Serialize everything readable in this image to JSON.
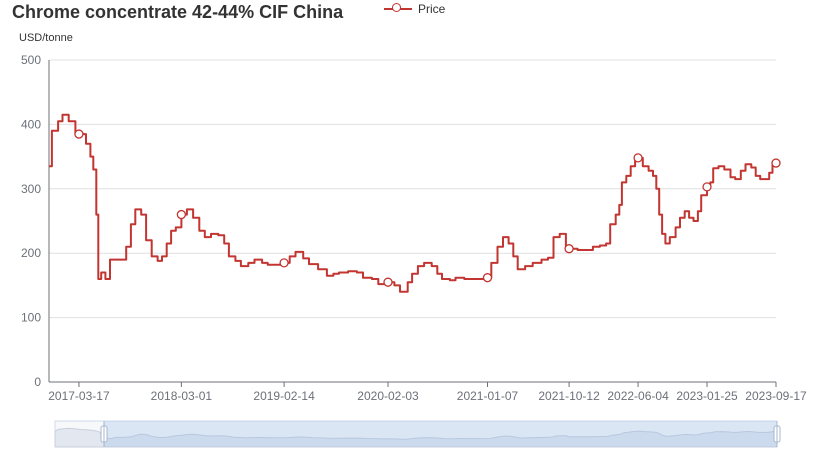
{
  "chart_data": {
    "type": "line",
    "title": "Chrome concentrate 42-44% CIF China",
    "ylabel": "USD/tonne",
    "xlabel": "",
    "ylim": [
      0,
      500
    ],
    "yticks": [
      0,
      100,
      200,
      300,
      400,
      500
    ],
    "x_tick_labels": [
      "2017-03-17",
      "2018-03-01",
      "2019-02-14",
      "2020-02-03",
      "2021-01-07",
      "2021-10-12",
      "2022-06-04",
      "2023-01-25",
      "2023-09-17"
    ],
    "grid": true,
    "legend": "top",
    "series": [
      {
        "name": "Price",
        "color": "#c23531",
        "points": [
          [
            "2016-12-05",
            335
          ],
          [
            "2016-12-15",
            390
          ],
          [
            "2017-01-05",
            405
          ],
          [
            "2017-01-20",
            415
          ],
          [
            "2017-02-10",
            405
          ],
          [
            "2017-03-05",
            385
          ],
          [
            "2017-03-17",
            385
          ],
          [
            "2017-04-10",
            370
          ],
          [
            "2017-04-25",
            350
          ],
          [
            "2017-05-05",
            330
          ],
          [
            "2017-05-15",
            260
          ],
          [
            "2017-05-22",
            160
          ],
          [
            "2017-06-01",
            170
          ],
          [
            "2017-06-15",
            160
          ],
          [
            "2017-07-01",
            190
          ],
          [
            "2017-08-01",
            190
          ],
          [
            "2017-08-25",
            210
          ],
          [
            "2017-09-10",
            245
          ],
          [
            "2017-09-25",
            268
          ],
          [
            "2017-10-15",
            260
          ],
          [
            "2017-11-01",
            220
          ],
          [
            "2017-11-20",
            195
          ],
          [
            "2017-12-10",
            188
          ],
          [
            "2017-12-25",
            195
          ],
          [
            "2018-01-10",
            215
          ],
          [
            "2018-01-25",
            235
          ],
          [
            "2018-02-10",
            240
          ],
          [
            "2018-03-01",
            260
          ],
          [
            "2018-03-20",
            268
          ],
          [
            "2018-04-10",
            255
          ],
          [
            "2018-05-01",
            235
          ],
          [
            "2018-05-20",
            225
          ],
          [
            "2018-06-10",
            230
          ],
          [
            "2018-07-05",
            228
          ],
          [
            "2018-07-25",
            215
          ],
          [
            "2018-08-10",
            195
          ],
          [
            "2018-09-01",
            188
          ],
          [
            "2018-09-20",
            180
          ],
          [
            "2018-10-15",
            185
          ],
          [
            "2018-11-05",
            190
          ],
          [
            "2018-12-01",
            185
          ],
          [
            "2018-12-20",
            182
          ],
          [
            "2019-02-14",
            185
          ],
          [
            "2019-03-05",
            195
          ],
          [
            "2019-03-25",
            202
          ],
          [
            "2019-04-20",
            192
          ],
          [
            "2019-05-10",
            183
          ],
          [
            "2019-06-10",
            175
          ],
          [
            "2019-07-10",
            165
          ],
          [
            "2019-08-01",
            168
          ],
          [
            "2019-08-20",
            170
          ],
          [
            "2019-09-20",
            172
          ],
          [
            "2019-10-20",
            170
          ],
          [
            "2019-11-10",
            162
          ],
          [
            "2019-12-10",
            160
          ],
          [
            "2020-01-01",
            152
          ],
          [
            "2020-02-03",
            155
          ],
          [
            "2020-02-25",
            150
          ],
          [
            "2020-03-15",
            140
          ],
          [
            "2020-04-10",
            155
          ],
          [
            "2020-04-25",
            168
          ],
          [
            "2020-05-15",
            180
          ],
          [
            "2020-06-05",
            185
          ],
          [
            "2020-07-01",
            180
          ],
          [
            "2020-07-20",
            168
          ],
          [
            "2020-08-05",
            160
          ],
          [
            "2020-09-01",
            158
          ],
          [
            "2020-09-20",
            162
          ],
          [
            "2020-10-20",
            160
          ],
          [
            "2020-12-01",
            160
          ],
          [
            "2021-01-07",
            162
          ],
          [
            "2021-01-20",
            185
          ],
          [
            "2021-02-10",
            210
          ],
          [
            "2021-03-01",
            225
          ],
          [
            "2021-03-20",
            215
          ],
          [
            "2021-04-05",
            195
          ],
          [
            "2021-04-20",
            175
          ],
          [
            "2021-05-15",
            180
          ],
          [
            "2021-06-10",
            185
          ],
          [
            "2021-07-10",
            190
          ],
          [
            "2021-08-01",
            193
          ],
          [
            "2021-08-20",
            225
          ],
          [
            "2021-09-10",
            230
          ],
          [
            "2021-09-25",
            230
          ],
          [
            "2021-10-01",
            205
          ],
          [
            "2021-10-12",
            207
          ],
          [
            "2021-11-10",
            205
          ],
          [
            "2021-12-10",
            205
          ],
          [
            "2022-01-01",
            210
          ],
          [
            "2022-01-25",
            212
          ],
          [
            "2022-02-15",
            215
          ],
          [
            "2022-03-01",
            245
          ],
          [
            "2022-03-20",
            260
          ],
          [
            "2022-04-01",
            275
          ],
          [
            "2022-04-10",
            310
          ],
          [
            "2022-04-25",
            320
          ],
          [
            "2022-05-10",
            335
          ],
          [
            "2022-05-25",
            345
          ],
          [
            "2022-06-04",
            348
          ],
          [
            "2022-06-20",
            335
          ],
          [
            "2022-07-10",
            328
          ],
          [
            "2022-07-25",
            320
          ],
          [
            "2022-08-05",
            300
          ],
          [
            "2022-08-15",
            260
          ],
          [
            "2022-08-25",
            230
          ],
          [
            "2022-09-05",
            215
          ],
          [
            "2022-09-20",
            225
          ],
          [
            "2022-10-10",
            240
          ],
          [
            "2022-10-25",
            255
          ],
          [
            "2022-11-10",
            265
          ],
          [
            "2022-11-25",
            255
          ],
          [
            "2022-12-10",
            250
          ],
          [
            "2022-12-25",
            265
          ],
          [
            "2023-01-05",
            290
          ],
          [
            "2023-01-25",
            303
          ],
          [
            "2023-02-05",
            310
          ],
          [
            "2023-02-15",
            332
          ],
          [
            "2023-03-05",
            335
          ],
          [
            "2023-03-25",
            330
          ],
          [
            "2023-04-15",
            318
          ],
          [
            "2023-05-01",
            315
          ],
          [
            "2023-05-20",
            328
          ],
          [
            "2023-06-05",
            338
          ],
          [
            "2023-06-25",
            333
          ],
          [
            "2023-07-10",
            320
          ],
          [
            "2023-07-25",
            315
          ],
          [
            "2023-08-15",
            315
          ],
          [
            "2023-08-25",
            325
          ],
          [
            "2023-09-05",
            338
          ],
          [
            "2023-09-17",
            340
          ]
        ],
        "markers": [
          "2017-03-17",
          "2018-03-01",
          "2019-02-14",
          "2020-02-03",
          "2021-01-07",
          "2021-10-12",
          "2022-06-04",
          "2023-01-25",
          "2023-09-17"
        ]
      }
    ]
  }
}
